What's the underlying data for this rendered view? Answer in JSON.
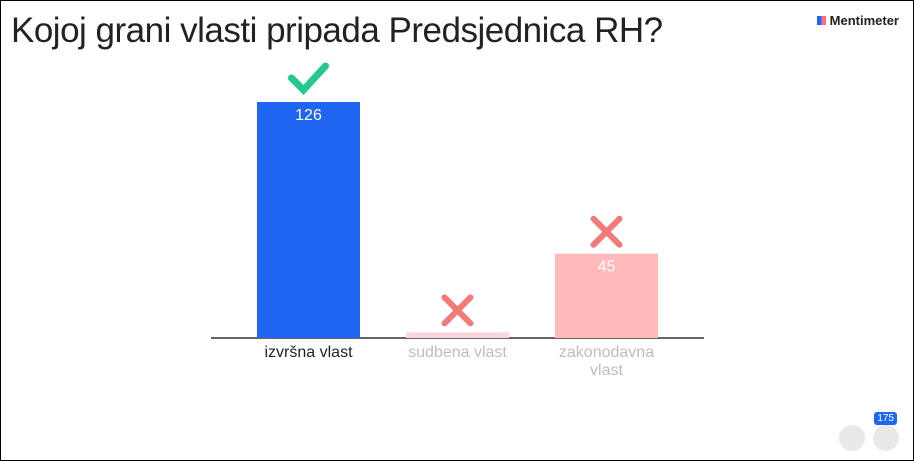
{
  "chart_data": {
    "type": "bar",
    "title": "Kojoj grani vlasti pripada Predsjednica RH?",
    "brand": "Mentimeter",
    "participant_count": 175,
    "categories": [
      "izvršna vlast",
      "sudbena vlast",
      "zakonodavna vlast"
    ],
    "values": [
      126,
      3,
      45
    ],
    "value_labels": [
      "126",
      null,
      "45"
    ],
    "colors": [
      "#1f66f2",
      "#f8d6dc",
      "#ffb9b9"
    ],
    "label_colors": [
      "#222222",
      "#bdbdbd",
      "#bdbdbd"
    ],
    "correct": [
      true,
      false,
      false
    ],
    "ylim": [
      0,
      126
    ]
  }
}
